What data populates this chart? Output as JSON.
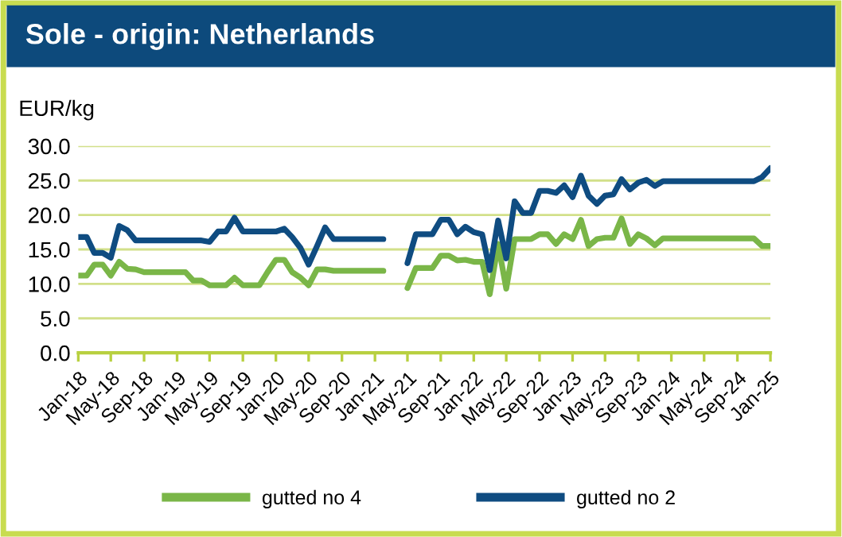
{
  "chart_data": {
    "type": "line",
    "title": "Sole - origin: Netherlands",
    "ylabel": "EUR/kg",
    "x": [
      "2018-01",
      "2018-02",
      "2018-03",
      "2018-04",
      "2018-05",
      "2018-06",
      "2018-07",
      "2018-08",
      "2018-09",
      "2018-10",
      "2018-11",
      "2018-12",
      "2019-01",
      "2019-02",
      "2019-03",
      "2019-04",
      "2019-05",
      "2019-06",
      "2019-07",
      "2019-08",
      "2019-09",
      "2019-10",
      "2019-11",
      "2019-12",
      "2020-01",
      "2020-02",
      "2020-03",
      "2020-04",
      "2020-05",
      "2020-06",
      "2020-07",
      "2020-08",
      "2020-09",
      "2020-10",
      "2020-11",
      "2020-12",
      "2021-01",
      "2021-02",
      "2021-03",
      "2021-04",
      "2021-05",
      "2021-06",
      "2021-07",
      "2021-08",
      "2021-09",
      "2021-10",
      "2021-11",
      "2021-12",
      "2022-01",
      "2022-02",
      "2022-03",
      "2022-04",
      "2022-05",
      "2022-06",
      "2022-07",
      "2022-08",
      "2022-09",
      "2022-10",
      "2022-11",
      "2022-12",
      "2023-01",
      "2023-02",
      "2023-03",
      "2023-04",
      "2023-05",
      "2023-06",
      "2023-07",
      "2023-08",
      "2023-09",
      "2023-10",
      "2023-11",
      "2023-12",
      "2024-01",
      "2024-02",
      "2024-03",
      "2024-04",
      "2024-05",
      "2024-06",
      "2024-07",
      "2024-08",
      "2024-09",
      "2024-10",
      "2024-11",
      "2024-12",
      "2025-01"
    ],
    "series": [
      {
        "name": "gutted no 4",
        "color": "#7ab648",
        "values": [
          11.2,
          11.2,
          12.8,
          12.8,
          11.2,
          13.2,
          12.2,
          12.1,
          11.7,
          11.7,
          11.7,
          11.7,
          11.7,
          11.7,
          10.5,
          10.5,
          9.8,
          9.8,
          9.8,
          10.9,
          9.8,
          9.8,
          9.8,
          11.7,
          13.5,
          13.5,
          11.7,
          10.9,
          9.8,
          12.1,
          12.1,
          11.9,
          11.9,
          11.9,
          11.9,
          11.9,
          11.9,
          11.9,
          null,
          null,
          9.4,
          12.3,
          12.3,
          12.3,
          14.1,
          14.1,
          13.4,
          13.5,
          13.2,
          13.2,
          8.5,
          15.8,
          9.3,
          16.5,
          16.5,
          16.5,
          17.2,
          17.2,
          15.8,
          17.2,
          16.5,
          19.3,
          15.5,
          16.5,
          16.7,
          16.7,
          19.5,
          15.8,
          17.2,
          16.6,
          15.6,
          16.6,
          16.6,
          16.6,
          16.6,
          16.6,
          16.6,
          16.6,
          16.6,
          16.6,
          16.6,
          16.6,
          16.6,
          15.5,
          15.5
        ]
      },
      {
        "name": "gutted no 2",
        "color": "#0f4c81",
        "values": [
          16.8,
          16.8,
          14.5,
          14.5,
          13.8,
          18.4,
          17.8,
          16.3,
          16.3,
          16.3,
          16.3,
          16.3,
          16.3,
          16.3,
          16.3,
          16.3,
          16.1,
          17.6,
          17.6,
          19.6,
          17.6,
          17.6,
          17.6,
          17.6,
          17.6,
          18.0,
          16.8,
          15.2,
          12.8,
          15.5,
          18.2,
          16.5,
          16.5,
          16.5,
          16.5,
          16.5,
          16.5,
          16.5,
          null,
          null,
          13.0,
          17.2,
          17.2,
          17.2,
          19.3,
          19.3,
          17.2,
          18.3,
          17.5,
          17.2,
          12.0,
          19.2,
          13.7,
          22.0,
          20.3,
          20.3,
          23.5,
          23.5,
          23.2,
          24.3,
          22.6,
          25.7,
          22.8,
          21.6,
          22.8,
          23.0,
          25.2,
          23.7,
          24.7,
          25.1,
          24.2,
          24.9,
          24.9,
          24.9,
          24.9,
          24.9,
          24.9,
          24.9,
          24.9,
          24.9,
          24.9,
          24.9,
          24.9,
          25.5,
          26.8
        ]
      }
    ],
    "xlim": [
      "2018-01",
      "2025-01"
    ],
    "xticks": [
      {
        "value": "2018-01",
        "label": "Jan-18"
      },
      {
        "value": "2018-05",
        "label": "May-18"
      },
      {
        "value": "2018-09",
        "label": "Sep-18"
      },
      {
        "value": "2019-01",
        "label": "Jan-19"
      },
      {
        "value": "2019-05",
        "label": "May-19"
      },
      {
        "value": "2019-09",
        "label": "Sep-19"
      },
      {
        "value": "2020-01",
        "label": "Jan-20"
      },
      {
        "value": "2020-05",
        "label": "May-20"
      },
      {
        "value": "2020-09",
        "label": "Sep-20"
      },
      {
        "value": "2021-01",
        "label": "Jan-21"
      },
      {
        "value": "2021-05",
        "label": "May-21"
      },
      {
        "value": "2021-09",
        "label": "Sep-21"
      },
      {
        "value": "2022-01",
        "label": "Jan-22"
      },
      {
        "value": "2022-05",
        "label": "May-22"
      },
      {
        "value": "2022-09",
        "label": "Sep-22"
      },
      {
        "value": "2023-01",
        "label": "Jan-23"
      },
      {
        "value": "2023-05",
        "label": "May-23"
      },
      {
        "value": "2023-09",
        "label": "Sep-23"
      },
      {
        "value": "2024-01",
        "label": "Jan-24"
      },
      {
        "value": "2024-05",
        "label": "May-24"
      },
      {
        "value": "2024-09",
        "label": "Sep-24"
      },
      {
        "value": "2025-01",
        "label": "Jan-25"
      }
    ],
    "ylim": [
      0,
      30
    ],
    "yticks": [
      {
        "value": 0,
        "label": "0.0"
      },
      {
        "value": 5,
        "label": "5.0"
      },
      {
        "value": 10,
        "label": "10.0"
      },
      {
        "value": 15,
        "label": "15.0"
      },
      {
        "value": 20,
        "label": "20.0"
      },
      {
        "value": 25,
        "label": "25.0"
      },
      {
        "value": 30,
        "label": "30.0"
      }
    ],
    "grid": "y",
    "legend": "bottom",
    "marker": "none",
    "line_style": "solid"
  }
}
